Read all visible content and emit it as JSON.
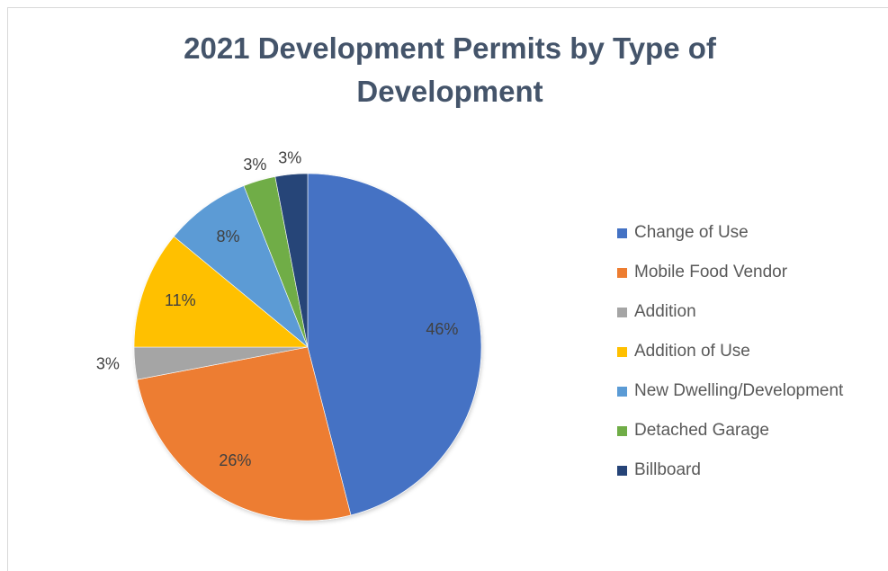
{
  "chart_data": {
    "type": "pie",
    "title_line1": "2021 Development Permits by Type of",
    "title_line2": "Development",
    "legend_position": "right",
    "slices": [
      {
        "label": "Change of Use",
        "value": 46,
        "display": "46%",
        "color": "#4472c4"
      },
      {
        "label": "Mobile Food Vendor",
        "value": 26,
        "display": "26%",
        "color": "#ed7d31"
      },
      {
        "label": "Addition",
        "value": 3,
        "display": "3%",
        "color": "#a5a5a5"
      },
      {
        "label": "Addition of Use",
        "value": 11,
        "display": "11%",
        "color": "#ffc000"
      },
      {
        "label": "New Dwelling/Development",
        "value": 8,
        "display": "8%",
        "color": "#5b9bd5"
      },
      {
        "label": "Detached Garage",
        "value": 3,
        "display": "3%",
        "color": "#70ad47"
      },
      {
        "label": "Billboard",
        "value": 3,
        "display": "3%",
        "color": "#264478"
      }
    ]
  }
}
